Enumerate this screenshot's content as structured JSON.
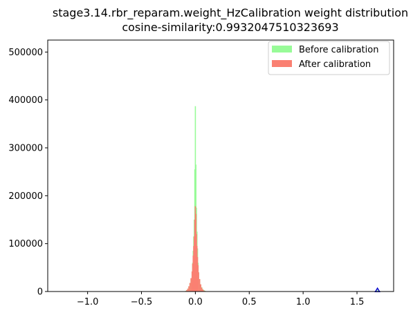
{
  "chart_data": {
    "type": "bar",
    "title": "stage3.14.rbr_reparam.weight_HzCalibration weight distribution",
    "subtitle": "cosine-similarity:0.9932047510323693",
    "xlabel": "",
    "ylabel": "",
    "xlim": [
      -1.37,
      1.84
    ],
    "ylim": [
      0,
      525000
    ],
    "x_ticks": [
      {
        "value": -1.0,
        "label": "−1.0"
      },
      {
        "value": -0.5,
        "label": "−0.5"
      },
      {
        "value": 0.0,
        "label": "0.0"
      },
      {
        "value": 0.5,
        "label": "0.5"
      },
      {
        "value": 1.0,
        "label": "1.0"
      },
      {
        "value": 1.5,
        "label": "1.5"
      }
    ],
    "y_ticks": [
      {
        "value": 0,
        "label": "0"
      },
      {
        "value": 100000,
        "label": "100000"
      },
      {
        "value": 200000,
        "label": "200000"
      },
      {
        "value": 300000,
        "label": "300000"
      },
      {
        "value": 400000,
        "label": "400000"
      },
      {
        "value": 500000,
        "label": "500000"
      }
    ],
    "legend_position": "top-right",
    "series": [
      {
        "name": "Before calibration",
        "color": "#98fb98",
        "bins": [
          {
            "x": -0.09,
            "y": 1500
          },
          {
            "x": -0.08,
            "y": 3000
          },
          {
            "x": -0.07,
            "y": 6000
          },
          {
            "x": -0.06,
            "y": 10000
          },
          {
            "x": -0.05,
            "y": 17000
          },
          {
            "x": -0.04,
            "y": 26000
          },
          {
            "x": -0.03,
            "y": 40000
          },
          {
            "x": -0.025,
            "y": 60000
          },
          {
            "x": -0.02,
            "y": 85000
          },
          {
            "x": -0.015,
            "y": 115000
          },
          {
            "x": -0.01,
            "y": 150000
          },
          {
            "x": -0.005,
            "y": 255000
          },
          {
            "x": 0.0,
            "y": 387000
          },
          {
            "x": 0.005,
            "y": 265000
          },
          {
            "x": 0.01,
            "y": 175000
          },
          {
            "x": 0.015,
            "y": 125000
          },
          {
            "x": 0.02,
            "y": 90000
          },
          {
            "x": 0.025,
            "y": 60000
          },
          {
            "x": 0.03,
            "y": 40000
          },
          {
            "x": 0.04,
            "y": 25000
          },
          {
            "x": 0.05,
            "y": 15000
          },
          {
            "x": 0.06,
            "y": 9000
          },
          {
            "x": 0.07,
            "y": 5000
          },
          {
            "x": 0.08,
            "y": 3000
          },
          {
            "x": 0.09,
            "y": 1500
          },
          {
            "x": 1.69,
            "y": 2500
          }
        ]
      },
      {
        "name": "After calibration",
        "color": "#fa8072",
        "bins": [
          {
            "x": -0.09,
            "y": 1000
          },
          {
            "x": -0.08,
            "y": 3000
          },
          {
            "x": -0.07,
            "y": 6000
          },
          {
            "x": -0.06,
            "y": 11000
          },
          {
            "x": -0.05,
            "y": 18000
          },
          {
            "x": -0.04,
            "y": 28000
          },
          {
            "x": -0.03,
            "y": 42000
          },
          {
            "x": -0.025,
            "y": 58000
          },
          {
            "x": -0.02,
            "y": 75000
          },
          {
            "x": -0.015,
            "y": 95000
          },
          {
            "x": -0.01,
            "y": 115000
          },
          {
            "x": -0.005,
            "y": 150000
          },
          {
            "x": 0.0,
            "y": 178000
          },
          {
            "x": 0.005,
            "y": 162000
          },
          {
            "x": 0.01,
            "y": 120000
          },
          {
            "x": 0.015,
            "y": 95000
          },
          {
            "x": 0.02,
            "y": 72000
          },
          {
            "x": 0.025,
            "y": 55000
          },
          {
            "x": 0.03,
            "y": 40000
          },
          {
            "x": 0.04,
            "y": 26000
          },
          {
            "x": 0.05,
            "y": 15000
          },
          {
            "x": 0.06,
            "y": 8000
          },
          {
            "x": 0.07,
            "y": 4000
          },
          {
            "x": 0.08,
            "y": 2000
          },
          {
            "x": 0.09,
            "y": 1000
          }
        ]
      }
    ],
    "markers": [
      {
        "x": 1.69,
        "y": 2500,
        "shape": "triangle",
        "color": "#0000cc"
      }
    ]
  }
}
